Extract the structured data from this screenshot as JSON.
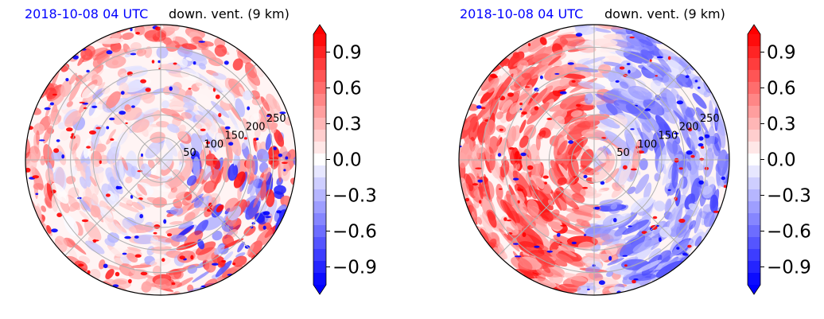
{
  "chart_data": [
    {
      "type": "heatmap",
      "projection": "polar",
      "date_label": "2018-10-08 04 UTC",
      "title": "down. vent. (9 km)",
      "radial_tick_labels": [
        "50",
        "100",
        "150",
        "200",
        "250"
      ],
      "radial_ticks": [
        50,
        100,
        150,
        200,
        250
      ],
      "r_max": 300,
      "angular_grid_deg": 45,
      "grid": true,
      "colorbar": {
        "cmap": "bwr",
        "vmin": -1.05,
        "vmax": 1.05,
        "levels": 21,
        "ticks": [
          0.9,
          0.6,
          0.3,
          0.0,
          -0.3,
          -0.6,
          -0.9
        ],
        "tick_labels": [
          "0.9",
          "0.6",
          "0.3",
          "0.0",
          "−0.3",
          "−0.6",
          "−0.9"
        ],
        "extend": "both"
      }
    },
    {
      "type": "heatmap",
      "projection": "polar",
      "date_label": "2018-10-08 04 UTC",
      "title": "down. vent. (9 km)",
      "radial_tick_labels": [
        "50",
        "100",
        "150",
        "200",
        "250"
      ],
      "radial_ticks": [
        50,
        100,
        150,
        200,
        250
      ],
      "r_max": 300,
      "angular_grid_deg": 45,
      "grid": true,
      "colorbar": {
        "cmap": "bwr",
        "vmin": -1.05,
        "vmax": 1.05,
        "levels": 21,
        "ticks": [
          0.9,
          0.6,
          0.3,
          0.0,
          -0.3,
          -0.6,
          -0.9
        ],
        "tick_labels": [
          "0.9",
          "0.6",
          "0.3",
          "0.0",
          "−0.3",
          "−0.6",
          "−0.9"
        ],
        "extend": "both"
      }
    }
  ],
  "colors": {
    "positive": "#ff0000",
    "negative": "#0000ff",
    "neutral": "#ffffff",
    "date_label": "#0000ff",
    "grid": "#b0b0b0"
  }
}
